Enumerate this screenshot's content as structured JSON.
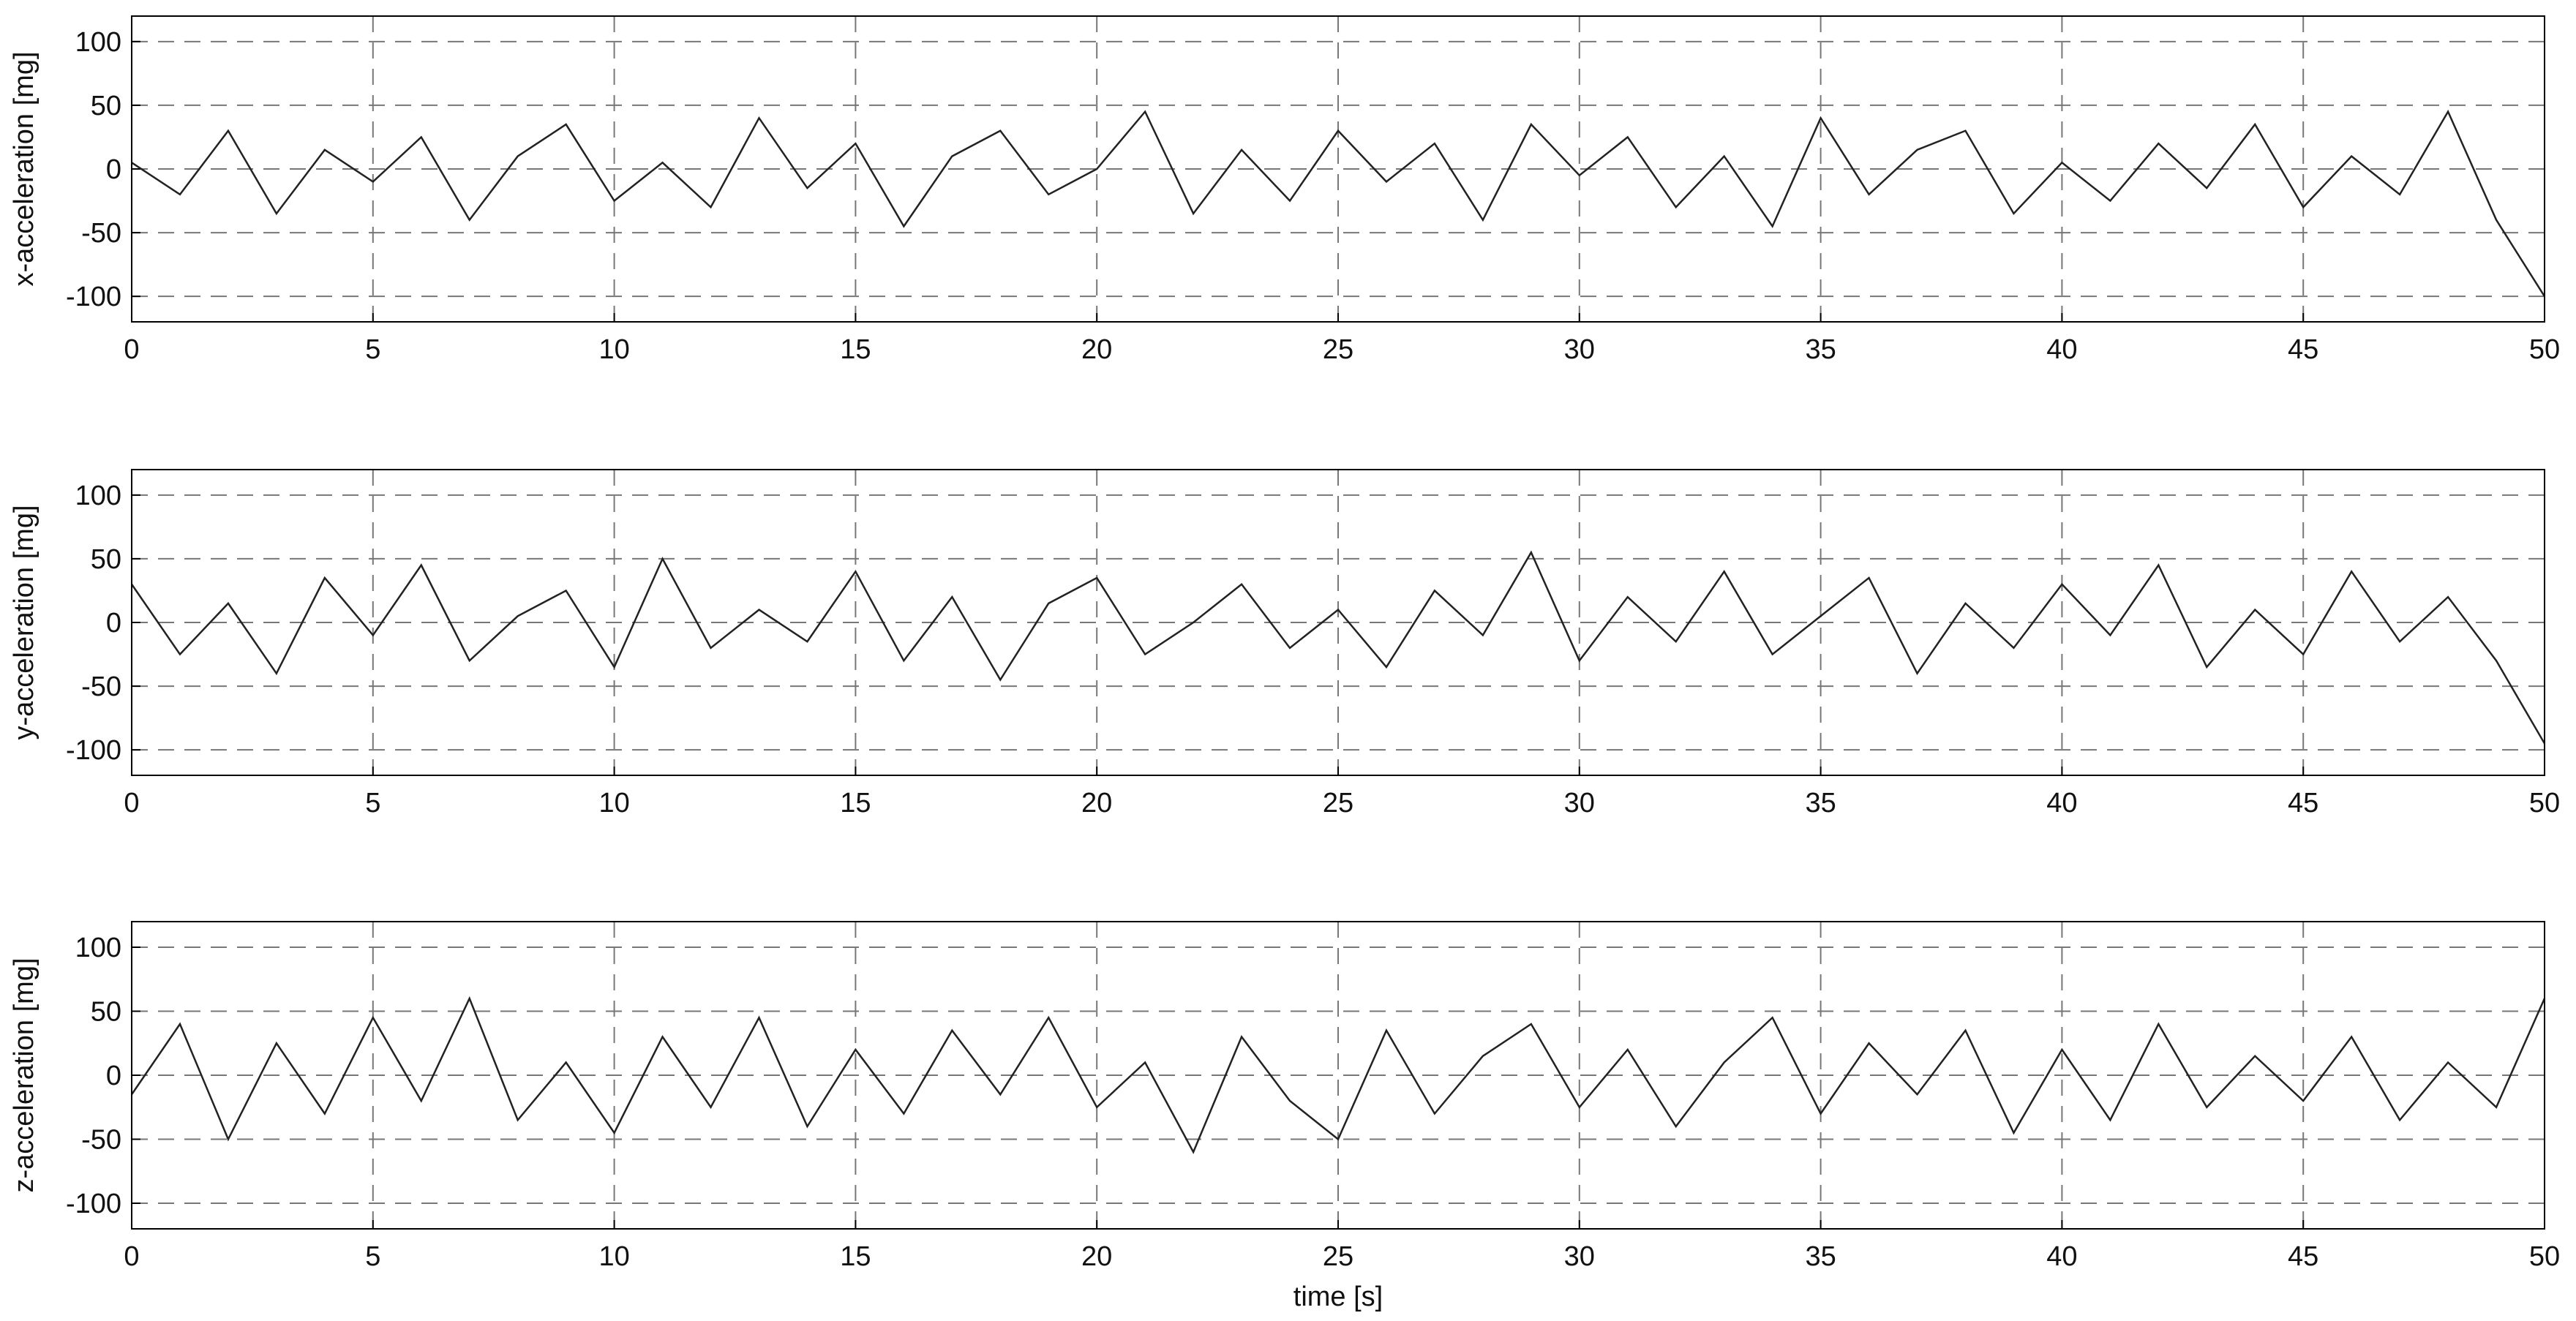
{
  "chart_data": [
    {
      "type": "line",
      "ylabel": "x-acceleration [mg]",
      "xlim": [
        0,
        50
      ],
      "ylim": [
        -120,
        120
      ],
      "xticks": [
        0,
        5,
        10,
        15,
        20,
        25,
        30,
        35,
        40,
        45,
        50
      ],
      "yticks": [
        -100,
        -50,
        0,
        50,
        100
      ],
      "grid": true,
      "x": [
        0,
        1,
        2,
        3,
        4,
        5,
        6,
        7,
        8,
        9,
        10,
        11,
        12,
        13,
        14,
        15,
        16,
        17,
        18,
        19,
        20,
        21,
        22,
        23,
        24,
        25,
        26,
        27,
        28,
        29,
        30,
        31,
        32,
        33,
        34,
        35,
        36,
        37,
        38,
        39,
        40,
        41,
        42,
        43,
        44,
        45,
        46,
        47,
        48,
        49,
        50
      ],
      "series": [
        {
          "color": "#222222",
          "values": [
            5,
            -20,
            30,
            -35,
            15,
            -10,
            25,
            -40,
            10,
            35,
            -25,
            5,
            -30,
            40,
            -15,
            20,
            -45,
            10,
            30,
            -20,
            0,
            45,
            -35,
            15,
            -25,
            30,
            -10,
            20,
            -40,
            35,
            -5,
            25,
            -30,
            10,
            -45,
            40,
            -20,
            15,
            30,
            -35,
            5,
            -25,
            20,
            -15,
            35,
            -30,
            10,
            -20,
            45,
            -40,
            -100
          ]
        }
      ]
    },
    {
      "type": "line",
      "ylabel": "y-acceleration [mg]",
      "xlim": [
        0,
        50
      ],
      "ylim": [
        -120,
        120
      ],
      "xticks": [
        0,
        5,
        10,
        15,
        20,
        25,
        30,
        35,
        40,
        45,
        50
      ],
      "yticks": [
        -100,
        -50,
        0,
        50,
        100
      ],
      "grid": true,
      "x": [
        0,
        1,
        2,
        3,
        4,
        5,
        6,
        7,
        8,
        9,
        10,
        11,
        12,
        13,
        14,
        15,
        16,
        17,
        18,
        19,
        20,
        21,
        22,
        23,
        24,
        25,
        26,
        27,
        28,
        29,
        30,
        31,
        32,
        33,
        34,
        35,
        36,
        37,
        38,
        39,
        40,
        41,
        42,
        43,
        44,
        45,
        46,
        47,
        48,
        49,
        50
      ],
      "series": [
        {
          "color": "#222222",
          "values": [
            30,
            -25,
            15,
            -40,
            35,
            -10,
            45,
            -30,
            5,
            25,
            -35,
            50,
            -20,
            10,
            -15,
            40,
            -30,
            20,
            -45,
            15,
            35,
            -25,
            0,
            30,
            -20,
            10,
            -35,
            25,
            -10,
            55,
            -30,
            20,
            -15,
            40,
            -25,
            5,
            35,
            -40,
            15,
            -20,
            30,
            -10,
            45,
            -35,
            10,
            -25,
            40,
            -15,
            20,
            -30,
            -95
          ]
        }
      ]
    },
    {
      "type": "line",
      "ylabel": "z-acceleration [mg]",
      "xlabel": "time [s]",
      "xlim": [
        0,
        50
      ],
      "ylim": [
        -120,
        120
      ],
      "xticks": [
        0,
        5,
        10,
        15,
        20,
        25,
        30,
        35,
        40,
        45,
        50
      ],
      "yticks": [
        -100,
        -50,
        0,
        50,
        100
      ],
      "grid": true,
      "x": [
        0,
        1,
        2,
        3,
        4,
        5,
        6,
        7,
        8,
        9,
        10,
        11,
        12,
        13,
        14,
        15,
        16,
        17,
        18,
        19,
        20,
        21,
        22,
        23,
        24,
        25,
        26,
        27,
        28,
        29,
        30,
        31,
        32,
        33,
        34,
        35,
        36,
        37,
        38,
        39,
        40,
        41,
        42,
        43,
        44,
        45,
        46,
        47,
        48,
        49,
        50
      ],
      "series": [
        {
          "color": "#222222",
          "values": [
            -15,
            40,
            -50,
            25,
            -30,
            45,
            -20,
            60,
            -35,
            10,
            -45,
            30,
            -25,
            45,
            -40,
            20,
            -30,
            35,
            -15,
            45,
            -25,
            10,
            -60,
            30,
            -20,
            -50,
            35,
            -30,
            15,
            40,
            -25,
            20,
            -40,
            10,
            45,
            -30,
            25,
            -15,
            35,
            -45,
            20,
            -35,
            40,
            -25,
            15,
            -20,
            30,
            -35,
            10,
            -25,
            60
          ]
        }
      ]
    }
  ]
}
